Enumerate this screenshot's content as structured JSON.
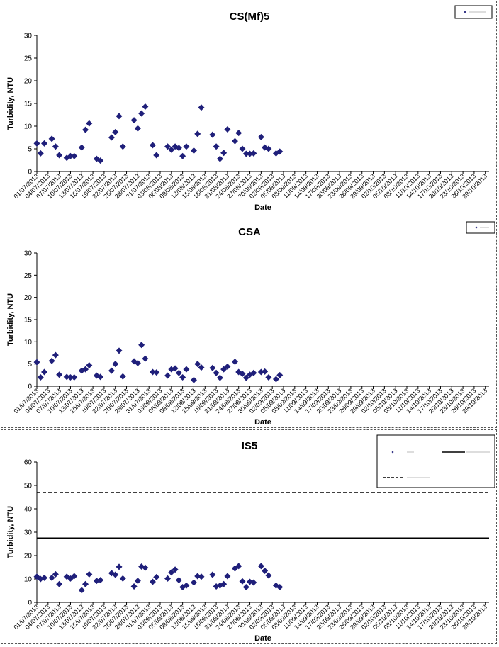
{
  "x_tick_labels": [
    "01/07/2013",
    "04/07/2013",
    "07/07/2013",
    "10/07/2013",
    "13/07/2013",
    "16/07/2013",
    "19/07/2013",
    "22/07/2013",
    "25/07/2013",
    "28/07/2013",
    "31/07/2013",
    "03/08/2013",
    "06/08/2013",
    "09/08/2013",
    "12/08/2013",
    "15/08/2013",
    "18/08/2013",
    "21/08/2013",
    "24/08/2013",
    "27/08/2013",
    "30/08/2013",
    "02/09/2013",
    "05/09/2013",
    "08/09/2013",
    "11/09/2013",
    "14/09/2013",
    "17/09/2013",
    "20/09/2013",
    "23/09/2013",
    "26/09/2013",
    "29/09/2013",
    "02/10/2013",
    "05/10/2013",
    "08/10/2013",
    "11/10/2013",
    "14/10/2013",
    "17/10/2013",
    "20/10/2013",
    "23/10/2013",
    "26/10/2013",
    "29/10/2013"
  ],
  "chart_data": [
    {
      "type": "scatter",
      "title": "CS(Mf)5",
      "xlabel": "Date",
      "ylabel": "Turbidity, NTU",
      "ylim": [
        0,
        30
      ],
      "yticks": [
        0,
        5,
        10,
        15,
        20,
        25,
        30
      ],
      "xlim": [
        "2013-07-01",
        "2013-10-30"
      ],
      "grid": false,
      "legend_position": "top-right",
      "marker_color": "#1f1f7a",
      "series": [
        {
          "name": "",
          "points": [
            [
              "2013-07-01",
              6.2
            ],
            [
              "2013-07-02",
              4.0
            ],
            [
              "2013-07-03",
              6.2
            ],
            [
              "2013-07-05",
              7.2
            ],
            [
              "2013-07-06",
              5.5
            ],
            [
              "2013-07-07",
              3.6
            ],
            [
              "2013-07-09",
              3.0
            ],
            [
              "2013-07-10",
              3.4
            ],
            [
              "2013-07-11",
              3.4
            ],
            [
              "2013-07-13",
              5.3
            ],
            [
              "2013-07-14",
              9.2
            ],
            [
              "2013-07-15",
              10.6
            ],
            [
              "2013-07-17",
              2.8
            ],
            [
              "2013-07-18",
              2.4
            ],
            [
              "2013-07-21",
              7.5
            ],
            [
              "2013-07-22",
              8.7
            ],
            [
              "2013-07-23",
              12.2
            ],
            [
              "2013-07-24",
              5.5
            ],
            [
              "2013-07-27",
              11.3
            ],
            [
              "2013-07-28",
              9.5
            ],
            [
              "2013-07-29",
              12.8
            ],
            [
              "2013-07-30",
              14.3
            ],
            [
              "2013-08-01",
              5.8
            ],
            [
              "2013-08-02",
              3.6
            ],
            [
              "2013-08-05",
              5.5
            ],
            [
              "2013-08-06",
              4.8
            ],
            [
              "2013-08-07",
              5.5
            ],
            [
              "2013-08-08",
              5.2
            ],
            [
              "2013-08-09",
              3.4
            ],
            [
              "2013-08-10",
              5.5
            ],
            [
              "2013-08-12",
              4.6
            ],
            [
              "2013-08-13",
              8.3
            ],
            [
              "2013-08-14",
              14.1
            ],
            [
              "2013-08-17",
              8.1
            ],
            [
              "2013-08-18",
              5.5
            ],
            [
              "2013-08-19",
              2.8
            ],
            [
              "2013-08-20",
              4.1
            ],
            [
              "2013-08-21",
              9.3
            ],
            [
              "2013-08-23",
              6.7
            ],
            [
              "2013-08-24",
              8.5
            ],
            [
              "2013-08-25",
              5.0
            ],
            [
              "2013-08-26",
              3.9
            ],
            [
              "2013-08-27",
              3.9
            ],
            [
              "2013-08-28",
              4.0
            ],
            [
              "2013-08-30",
              7.6
            ],
            [
              "2013-08-31",
              5.3
            ],
            [
              "2013-09-01",
              5.0
            ],
            [
              "2013-09-03",
              4.0
            ],
            [
              "2013-09-04",
              4.4
            ]
          ]
        }
      ]
    },
    {
      "type": "scatter",
      "title": "CSA",
      "xlabel": "Date",
      "ylabel": "Turbidity, NTU",
      "ylim": [
        0,
        30
      ],
      "yticks": [
        0,
        5,
        10,
        15,
        20,
        25,
        30
      ],
      "xlim": [
        "2013-07-01",
        "2013-10-30"
      ],
      "grid": false,
      "legend_position": "top-right",
      "marker_color": "#1f1f7a",
      "series": [
        {
          "name": "",
          "points": [
            [
              "2013-07-01",
              5.4
            ],
            [
              "2013-07-02",
              2.0
            ],
            [
              "2013-07-03",
              3.2
            ],
            [
              "2013-07-05",
              5.7
            ],
            [
              "2013-07-06",
              7.0
            ],
            [
              "2013-07-07",
              2.6
            ],
            [
              "2013-07-09",
              2.1
            ],
            [
              "2013-07-10",
              2.0
            ],
            [
              "2013-07-11",
              2.0
            ],
            [
              "2013-07-13",
              3.5
            ],
            [
              "2013-07-14",
              3.8
            ],
            [
              "2013-07-15",
              4.7
            ],
            [
              "2013-07-17",
              2.4
            ],
            [
              "2013-07-18",
              2.1
            ],
            [
              "2013-07-21",
              3.5
            ],
            [
              "2013-07-22",
              5.0
            ],
            [
              "2013-07-23",
              8.0
            ],
            [
              "2013-07-24",
              2.2
            ],
            [
              "2013-07-27",
              5.6
            ],
            [
              "2013-07-28",
              5.2
            ],
            [
              "2013-07-29",
              9.3
            ],
            [
              "2013-07-30",
              6.2
            ],
            [
              "2013-08-01",
              3.2
            ],
            [
              "2013-08-02",
              3.1
            ],
            [
              "2013-08-05",
              2.4
            ],
            [
              "2013-08-06",
              3.8
            ],
            [
              "2013-08-07",
              4.0
            ],
            [
              "2013-08-08",
              3.0
            ],
            [
              "2013-08-09",
              2.0
            ],
            [
              "2013-08-10",
              3.8
            ],
            [
              "2013-08-12",
              1.4
            ],
            [
              "2013-08-13",
              5.0
            ],
            [
              "2013-08-14",
              4.2
            ],
            [
              "2013-08-17",
              4.1
            ],
            [
              "2013-08-18",
              3.0
            ],
            [
              "2013-08-19",
              1.9
            ],
            [
              "2013-08-20",
              3.8
            ],
            [
              "2013-08-21",
              4.4
            ],
            [
              "2013-08-23",
              5.5
            ],
            [
              "2013-08-24",
              3.2
            ],
            [
              "2013-08-25",
              2.8
            ],
            [
              "2013-08-26",
              1.9
            ],
            [
              "2013-08-27",
              2.6
            ],
            [
              "2013-08-28",
              3.0
            ],
            [
              "2013-08-30",
              3.2
            ],
            [
              "2013-08-31",
              3.3
            ],
            [
              "2013-09-01",
              2.0
            ],
            [
              "2013-09-03",
              1.6
            ],
            [
              "2013-09-04",
              2.5
            ]
          ]
        }
      ]
    },
    {
      "type": "scatter",
      "title": "IS5",
      "xlabel": "Date",
      "ylabel": "Turbidity, NTU",
      "ylim": [
        0,
        60
      ],
      "yticks": [
        0,
        10,
        20,
        30,
        40,
        50,
        60
      ],
      "xlim": [
        "2013-07-01",
        "2013-10-30"
      ],
      "grid": false,
      "legend_position": "top-right",
      "marker_color": "#1f1f7a",
      "reference_lines": [
        {
          "name": "",
          "value": 27.5,
          "style": "solid"
        },
        {
          "name": "",
          "value": 47.0,
          "style": "dashed"
        }
      ],
      "series": [
        {
          "name": "",
          "points": [
            [
              "2013-07-01",
              11.0
            ],
            [
              "2013-07-02",
              10.0
            ],
            [
              "2013-07-03",
              10.5
            ],
            [
              "2013-07-05",
              10.5
            ],
            [
              "2013-07-06",
              12.0
            ],
            [
              "2013-07-07",
              7.8
            ],
            [
              "2013-07-09",
              11.0
            ],
            [
              "2013-07-10",
              10.2
            ],
            [
              "2013-07-11",
              11.2
            ],
            [
              "2013-07-13",
              5.2
            ],
            [
              "2013-07-14",
              7.8
            ],
            [
              "2013-07-15",
              12.0
            ],
            [
              "2013-07-17",
              9.2
            ],
            [
              "2013-07-18",
              9.5
            ],
            [
              "2013-07-21",
              12.5
            ],
            [
              "2013-07-22",
              11.8
            ],
            [
              "2013-07-23",
              15.2
            ],
            [
              "2013-07-24",
              10.2
            ],
            [
              "2013-07-27",
              6.8
            ],
            [
              "2013-07-28",
              9.2
            ],
            [
              "2013-07-29",
              15.3
            ],
            [
              "2013-07-30",
              14.8
            ],
            [
              "2013-08-01",
              8.8
            ],
            [
              "2013-08-02",
              10.8
            ],
            [
              "2013-08-05",
              10.2
            ],
            [
              "2013-08-06",
              12.8
            ],
            [
              "2013-08-07",
              14.0
            ],
            [
              "2013-08-08",
              9.5
            ],
            [
              "2013-08-09",
              6.5
            ],
            [
              "2013-08-10",
              7.2
            ],
            [
              "2013-08-12",
              8.5
            ],
            [
              "2013-08-13",
              11.2
            ],
            [
              "2013-08-14",
              11.0
            ],
            [
              "2013-08-17",
              11.8
            ],
            [
              "2013-08-18",
              6.8
            ],
            [
              "2013-08-19",
              7.2
            ],
            [
              "2013-08-20",
              7.8
            ],
            [
              "2013-08-21",
              11.2
            ],
            [
              "2013-08-23",
              14.5
            ],
            [
              "2013-08-24",
              15.5
            ],
            [
              "2013-08-25",
              9.0
            ],
            [
              "2013-08-26",
              6.5
            ],
            [
              "2013-08-27",
              8.8
            ],
            [
              "2013-08-28",
              8.5
            ],
            [
              "2013-08-30",
              15.5
            ],
            [
              "2013-08-31",
              13.5
            ],
            [
              "2013-09-01",
              11.5
            ],
            [
              "2013-09-03",
              7.2
            ],
            [
              "2013-09-04",
              6.5
            ]
          ]
        }
      ]
    }
  ]
}
